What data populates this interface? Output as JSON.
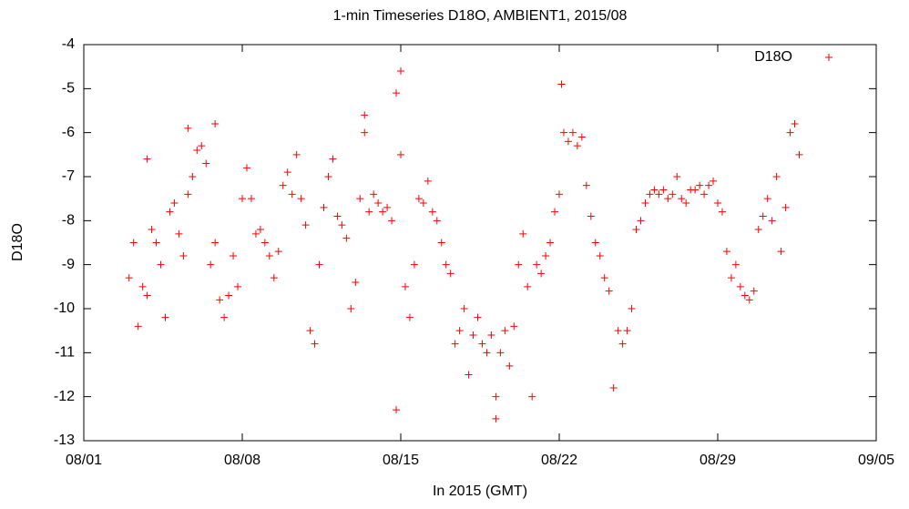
{
  "chart_data": {
    "type": "scatter",
    "title": "1-min Timeseries D18O, AMBIENT1, 2015/08",
    "x_label": "In 2015 (GMT)",
    "y_label": "D18O",
    "legend": "top-right",
    "series": [
      {
        "name": "D18O",
        "color": "#ff0000",
        "x": [
          3.0,
          3.2,
          3.4,
          3.6,
          3.8,
          4.0,
          4.2,
          4.4,
          4.6,
          4.8,
          5.0,
          5.2,
          5.4,
          5.6,
          5.8,
          6.0,
          6.2,
          6.4,
          6.6,
          6.8,
          7.0,
          7.2,
          7.4,
          7.6,
          7.8,
          8.0,
          8.2,
          8.4,
          8.6,
          8.8,
          9.0,
          9.2,
          9.4,
          9.6,
          9.8,
          10.0,
          10.2,
          10.4,
          10.6,
          10.8,
          11.0,
          11.2,
          11.4,
          11.6,
          11.8,
          12.0,
          12.2,
          12.4,
          12.6,
          12.8,
          13.0,
          13.2,
          13.4,
          13.6,
          13.8,
          14.0,
          14.2,
          14.4,
          14.6,
          14.8,
          15.0,
          15.2,
          15.4,
          15.6,
          15.8,
          16.0,
          16.2,
          16.4,
          16.6,
          16.8,
          17.0,
          17.2,
          17.4,
          17.6,
          17.8,
          18.0,
          18.2,
          18.4,
          18.6,
          18.8,
          19.0,
          19.2,
          19.4,
          19.6,
          19.8,
          20.0,
          20.2,
          20.4,
          20.6,
          20.8,
          21.0,
          21.2,
          21.4,
          21.6,
          21.8,
          22.0,
          22.2,
          22.4,
          22.6,
          22.8,
          23.0,
          23.2,
          23.4,
          23.6,
          23.8,
          24.0,
          24.2,
          24.4,
          24.6,
          24.8,
          25.0,
          25.2,
          25.4,
          25.6,
          25.8,
          26.0,
          26.2,
          26.4,
          26.6,
          26.8,
          27.0,
          27.2,
          27.4,
          27.6,
          27.8,
          28.0,
          28.2,
          28.4,
          28.6,
          28.8,
          29.0,
          29.2,
          29.4,
          29.6,
          29.8,
          30.0,
          30.2,
          30.4,
          30.6,
          30.8,
          31.0,
          31.2,
          31.4,
          31.6,
          31.8,
          32.0,
          32.2,
          32.4,
          32.6,
          15.0,
          14.8,
          22.1,
          5.6,
          6.8,
          3.8,
          13.4,
          19.2
        ],
        "values": [
          -9.3,
          -8.5,
          -10.4,
          -9.5,
          -9.7,
          -8.2,
          -8.5,
          -9.0,
          -10.2,
          -7.8,
          -7.6,
          -8.3,
          -8.8,
          -7.4,
          -7.0,
          -6.4,
          -6.3,
          -6.7,
          -9.0,
          -8.5,
          -9.8,
          -10.2,
          -9.7,
          -8.8,
          -9.5,
          -7.5,
          -6.8,
          -7.5,
          -8.3,
          -8.2,
          -8.5,
          -8.8,
          -9.3,
          -8.7,
          -7.2,
          -6.9,
          -7.4,
          -6.5,
          -7.5,
          -8.1,
          -10.5,
          -10.8,
          -9.0,
          -7.7,
          -7.0,
          -6.6,
          -7.9,
          -8.1,
          -8.4,
          -10.0,
          -9.4,
          -7.5,
          -6.0,
          -7.8,
          -7.4,
          -7.6,
          -7.8,
          -7.7,
          -8.0,
          -5.1,
          -6.5,
          -9.5,
          -10.2,
          -9.0,
          -7.5,
          -7.6,
          -7.1,
          -7.8,
          -8.0,
          -8.5,
          -9.0,
          -9.2,
          -10.8,
          -10.5,
          -10.0,
          -11.5,
          -10.6,
          -10.2,
          -10.8,
          -11.0,
          -10.6,
          -12.0,
          -11.0,
          -10.5,
          -11.3,
          -10.4,
          -9.0,
          -8.3,
          -9.5,
          -12.0,
          -9.0,
          -9.2,
          -8.8,
          -8.5,
          -7.8,
          -7.4,
          -6.0,
          -6.2,
          -6.0,
          -6.3,
          -6.1,
          -7.2,
          -7.9,
          -8.5,
          -8.8,
          -9.3,
          -9.6,
          -11.8,
          -10.5,
          -10.8,
          -10.5,
          -10.0,
          -8.2,
          -8.0,
          -7.6,
          -7.4,
          -7.3,
          -7.4,
          -7.3,
          -7.5,
          -7.4,
          -7.0,
          -7.5,
          -7.6,
          -7.3,
          -7.3,
          -7.2,
          -7.4,
          -7.2,
          -7.1,
          -7.6,
          -7.8,
          -8.7,
          -9.3,
          -9.0,
          -9.5,
          -9.7,
          -9.8,
          -9.6,
          -8.2,
          -7.9,
          -7.5,
          -8.0,
          -7.0,
          -8.7,
          -7.7,
          -6.0,
          -5.8,
          -6.5,
          -4.6,
          -12.3,
          -4.9,
          -5.9,
          -5.8,
          -6.6,
          -5.6,
          -12.5
        ]
      }
    ],
    "xlim": [
      1,
      36
    ],
    "xticks": [
      {
        "value": 1,
        "label": "08/01"
      },
      {
        "value": 8,
        "label": "08/08"
      },
      {
        "value": 15,
        "label": "08/15"
      },
      {
        "value": 22,
        "label": "08/22"
      },
      {
        "value": 29,
        "label": "08/29"
      },
      {
        "value": 36,
        "label": "09/05"
      }
    ],
    "ylim": [
      -13,
      -4
    ],
    "yticks": [
      -13,
      -12,
      -11,
      -10,
      -9,
      -8,
      -7,
      -6,
      -5,
      -4
    ]
  }
}
